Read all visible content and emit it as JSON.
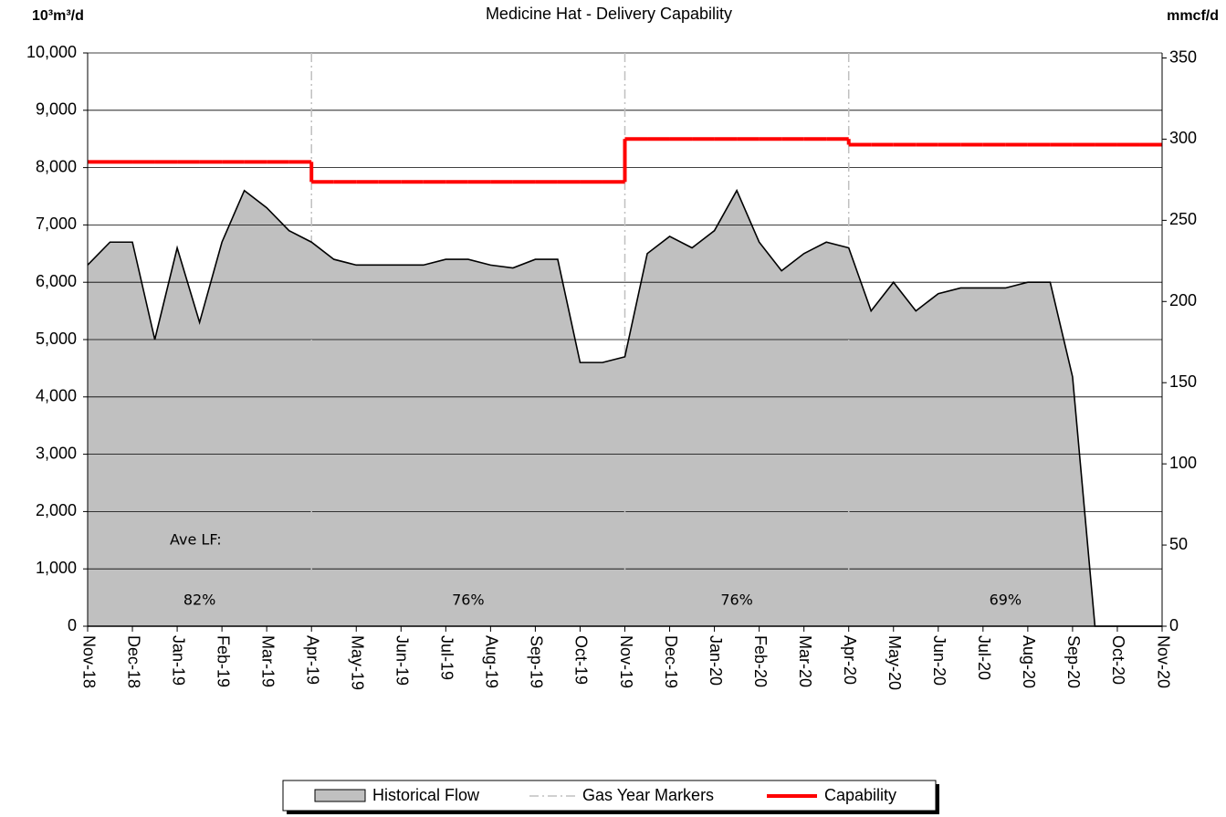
{
  "chart_data": {
    "type": "area",
    "title": "Medicine Hat - Delivery Capability",
    "y_label": "10³m³/d",
    "y2_label": "mmcf/d",
    "categories": [
      "Nov-18",
      null,
      "Dec-18",
      null,
      "Jan-19",
      null,
      "Feb-19",
      null,
      "Mar-19",
      null,
      "Apr-19",
      null,
      "May-19",
      null,
      "Jun-19",
      null,
      "Jul-19",
      null,
      "Aug-19",
      null,
      "Sep-19",
      null,
      "Oct-19",
      null,
      "Nov-19",
      null,
      "Dec-19",
      null,
      "Jan-20",
      null,
      "Feb-20",
      null,
      "Mar-20",
      null,
      "Apr-20",
      null,
      "May-20",
      null,
      "Jun-20",
      null,
      "Jul-20",
      null,
      "Aug-20",
      null,
      "Sep-20",
      null,
      "Oct-20",
      null,
      "Nov-20"
    ],
    "series": [
      {
        "name": "Historical Flow",
        "color": "#c0c0c0",
        "line_color": "#000000",
        "values": [
          6300,
          6700,
          6700,
          5000,
          6600,
          5300,
          6700,
          7600,
          7300,
          6900,
          6700,
          6400,
          6300,
          6300,
          6300,
          6300,
          6400,
          6400,
          6300,
          6250,
          6400,
          6400,
          4600,
          4600,
          4700,
          6500,
          6800,
          6600,
          6900,
          7600,
          6700,
          6200,
          6500,
          6700,
          6600,
          5500,
          6000,
          5500,
          5800,
          5900,
          5900,
          5900,
          6000,
          6000,
          4350,
          0,
          0,
          0,
          0
        ]
      },
      {
        "name": "Gas Year Markers",
        "color": "#c0c0c0",
        "markers": [
          "Apr-19",
          "Nov-19",
          "Apr-20"
        ]
      },
      {
        "name": "Capability",
        "color": "#ff0000",
        "step": true,
        "values": [
          8100,
          8100,
          8100,
          8100,
          8100,
          8100,
          8100,
          8100,
          8100,
          8100,
          7750,
          7750,
          7750,
          7750,
          7750,
          7750,
          7750,
          7750,
          7750,
          7750,
          7750,
          7750,
          7750,
          7750,
          8500,
          8500,
          8500,
          8500,
          8500,
          8500,
          8500,
          8500,
          8500,
          8500,
          8400,
          8400,
          8400,
          8400,
          8400,
          8400,
          8400,
          8400,
          8400,
          8400,
          8400,
          8400,
          8400,
          8400,
          8400
        ]
      }
    ],
    "annotations": [
      "Ave LF:",
      "82%",
      "76%",
      "76%",
      "69%"
    ],
    "ylim": [
      0,
      10000
    ],
    "yticks": [
      0,
      {
        "value": 1000,
        "label": "1,000"
      },
      {
        "value": 2000,
        "label": "2,000"
      },
      {
        "value": 3000,
        "label": "3,000"
      },
      {
        "value": 4000,
        "label": "4,000"
      },
      {
        "value": 5000,
        "label": "5,000"
      },
      {
        "value": 6000,
        "label": "6,000"
      },
      {
        "value": 7000,
        "label": "7,000"
      },
      {
        "value": 8000,
        "label": "8,000"
      },
      {
        "value": 9000,
        "label": "9,000"
      },
      {
        "value": 10000,
        "label": "10,000"
      }
    ],
    "y2lim": [
      0,
      353.1
    ],
    "y2ticks": [
      0,
      50,
      100,
      150,
      200,
      250,
      300,
      350
    ],
    "grid": true
  }
}
